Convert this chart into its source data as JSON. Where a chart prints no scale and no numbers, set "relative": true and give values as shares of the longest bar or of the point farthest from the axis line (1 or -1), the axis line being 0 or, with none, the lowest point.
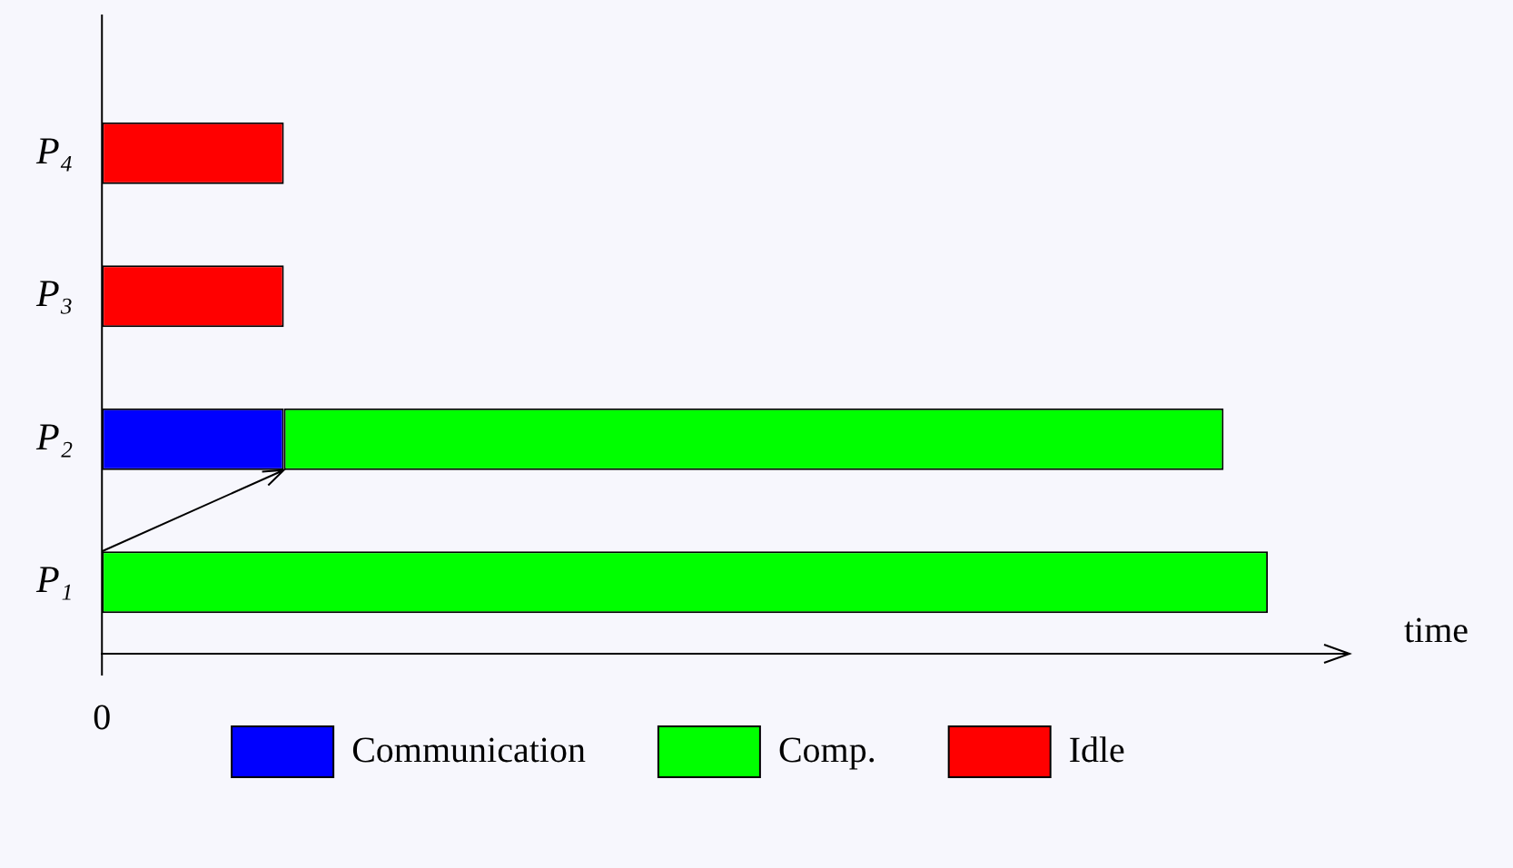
{
  "chart_data": {
    "type": "bar",
    "orientation": "horizontal",
    "stacked": true,
    "relative": true,
    "xlabel": "time",
    "legend": "bottom",
    "grid": false,
    "categories": [
      "P₄",
      "P₃",
      "P₂",
      "P₁"
    ],
    "series": [
      {
        "name": "Communication",
        "color": "#0000ff",
        "values": [
          null,
          null,
          0.156,
          null
        ]
      },
      {
        "name": "Comp.",
        "color": "#00ff00",
        "values": [
          null,
          null,
          0.806,
          1
        ]
      },
      {
        "name": "Idle",
        "color": "#ff0000",
        "values": [
          0.156,
          0.156,
          null,
          null
        ]
      }
    ],
    "annotations": [
      "0"
    ]
  }
}
